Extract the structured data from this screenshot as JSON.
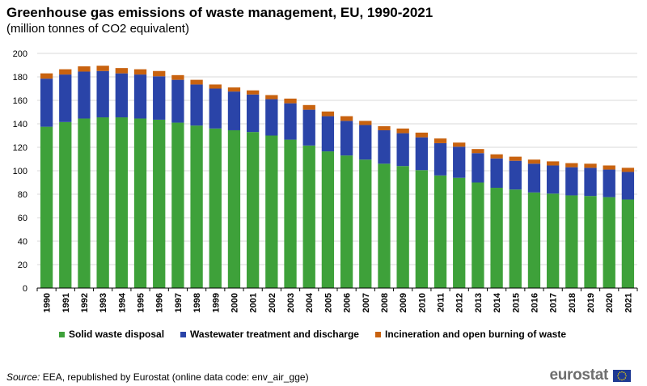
{
  "title": "Greenhouse gas emissions of waste management, EU, 1990-2021",
  "subtitle": "(million tonnes of CO2 equivalent)",
  "source": {
    "label": "Source:",
    "text": "EEA, republished by Eurostat (online data code: env_air_gge)"
  },
  "logo": {
    "text": "eurostat",
    "icon": "eu-flag-icon"
  },
  "colors": {
    "solid": "#3ea13a",
    "wastewater": "#2a44a8",
    "incineration": "#c8620f",
    "grid": "#d9d9d9",
    "axis": "#000000"
  },
  "chart_data": {
    "type": "bar",
    "stacked": true,
    "title": "Greenhouse gas emissions of waste management, EU, 1990-2021",
    "ylabel": "million tonnes of CO2 equivalent",
    "xlabel": "",
    "ylim": [
      0,
      200
    ],
    "yticks": [
      0,
      20,
      40,
      60,
      80,
      100,
      120,
      140,
      160,
      180,
      200
    ],
    "grid": true,
    "legend_position": "bottom",
    "categories": [
      "1990",
      "1991",
      "1992",
      "1993",
      "1994",
      "1995",
      "1996",
      "1997",
      "1998",
      "1999",
      "2000",
      "2001",
      "2002",
      "2003",
      "2004",
      "2005",
      "2006",
      "2007",
      "2008",
      "2009",
      "2010",
      "2011",
      "2012",
      "2013",
      "2014",
      "2015",
      "2016",
      "2017",
      "2018",
      "2019",
      "2020",
      "2021"
    ],
    "series": [
      {
        "name": "Solid waste disposal",
        "color": "#3ea13a",
        "values": [
          137.5,
          141.5,
          144.5,
          145.5,
          145.5,
          144.5,
          143.5,
          141,
          138.5,
          136,
          134.5,
          133,
          130,
          126.5,
          121.5,
          116.5,
          113,
          109.5,
          106,
          104,
          100.5,
          96,
          94,
          90,
          85.5,
          84,
          81.5,
          80.5,
          79,
          78.5,
          77.5,
          75.5
        ]
      },
      {
        "name": "Wastewater treatment and discharge",
        "color": "#2a44a8",
        "values": [
          41,
          40.5,
          40,
          39.5,
          37.5,
          37.5,
          37,
          36.5,
          35,
          34,
          33,
          32,
          31,
          31,
          30.5,
          30,
          29.5,
          29.5,
          28.5,
          28,
          28,
          27.5,
          26.5,
          25,
          25,
          24.5,
          24.5,
          24,
          24,
          24,
          23.5,
          23.5
        ]
      },
      {
        "name": "Incineration and open burning of waste",
        "color": "#c8620f",
        "values": [
          4.5,
          4.5,
          4.5,
          4.5,
          4.5,
          4.5,
          4.5,
          4,
          4,
          3.5,
          3.5,
          3.5,
          3.5,
          4,
          4,
          4,
          4,
          3.5,
          3.5,
          4,
          4,
          4,
          3.5,
          3.5,
          3.5,
          3.5,
          3.5,
          3.5,
          3.5,
          3.5,
          3.5,
          3.5
        ]
      }
    ]
  }
}
